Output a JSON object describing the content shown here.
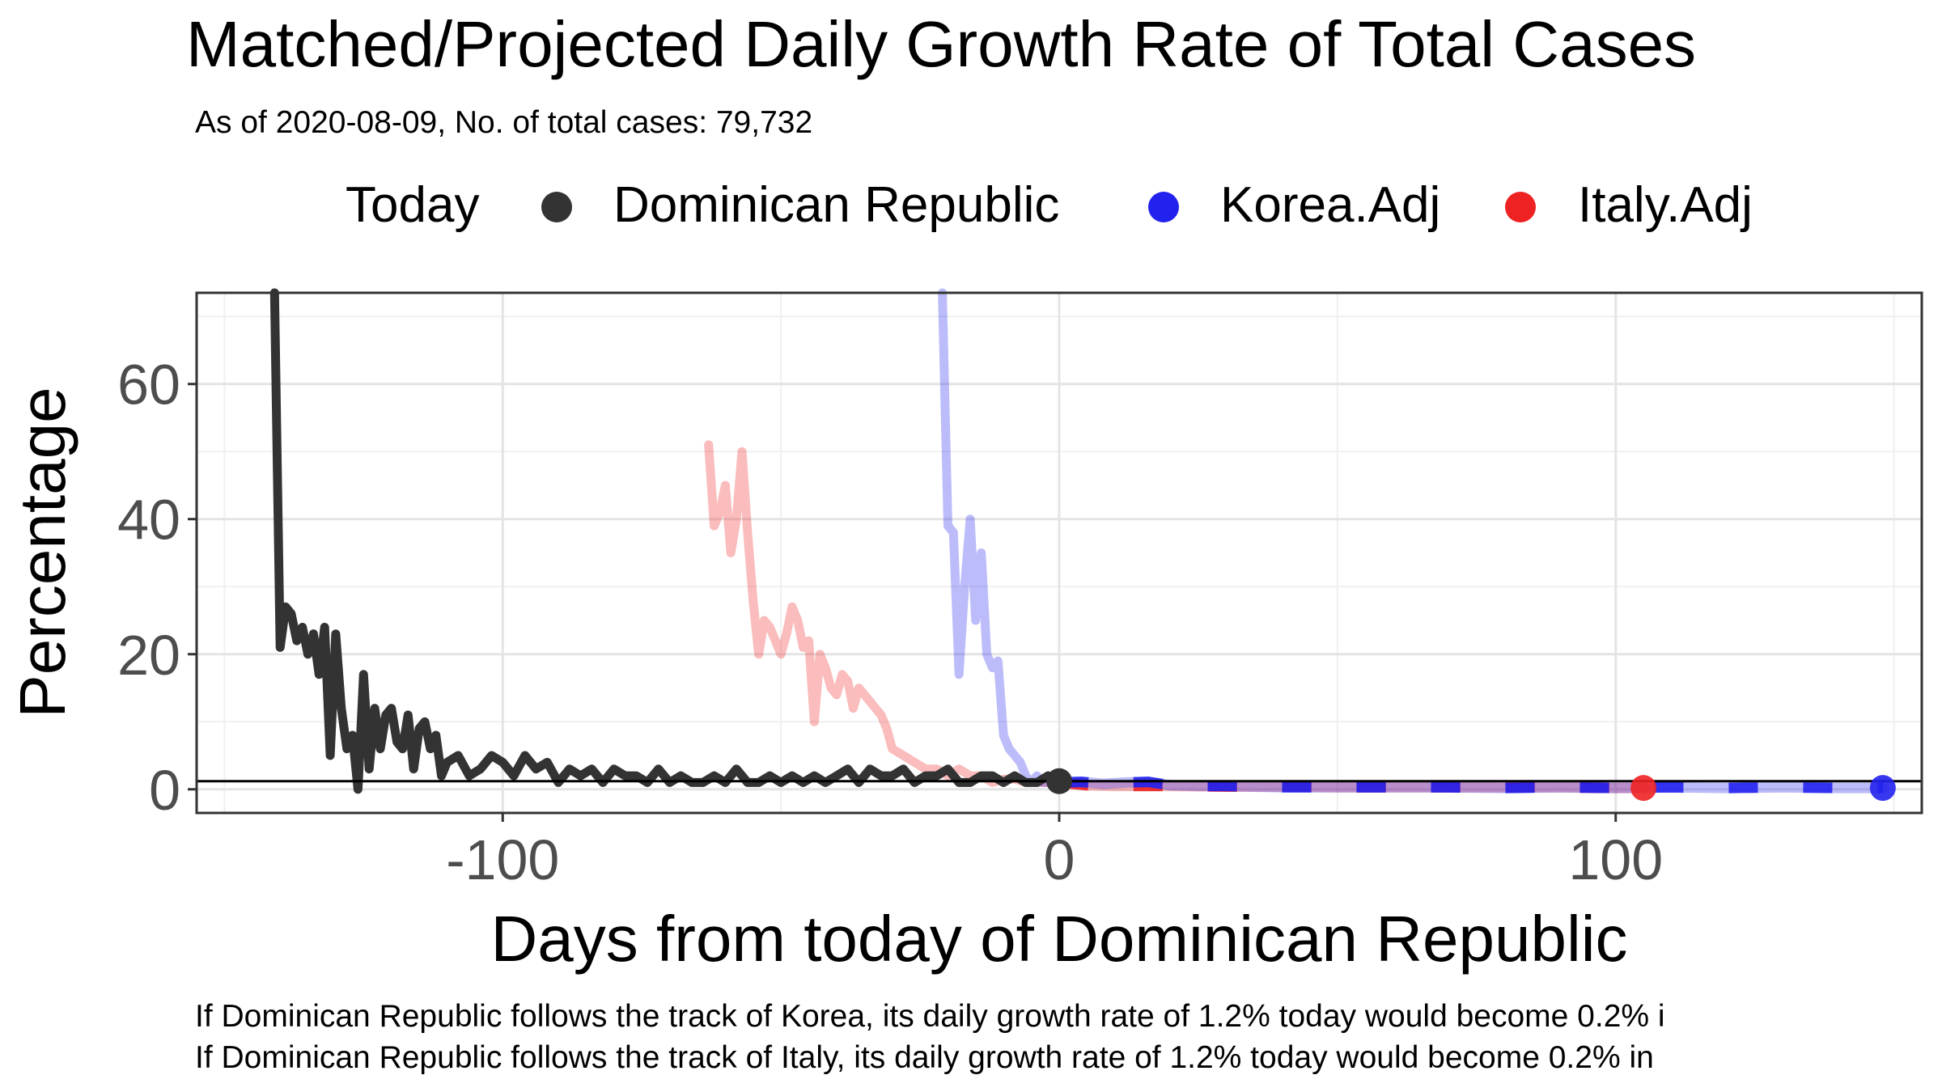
{
  "chart_data": {
    "type": "line",
    "title": "Matched/Projected Daily Growth Rate of Total Cases",
    "subtitle": "As of 2020-08-09, No. of total cases: 79,732",
    "xlabel": "Days from today of Dominican Republic",
    "ylabel": "Percentage",
    "xlim": [
      -155,
      155
    ],
    "ylim": [
      -3.5,
      73.5
    ],
    "x_ticks": [
      -100,
      0,
      100
    ],
    "x_tick_labels": [
      "-100",
      "0",
      "100"
    ],
    "y_ticks": [
      0,
      20,
      40,
      60
    ],
    "y_tick_labels": [
      "0",
      "20",
      "40",
      "60"
    ],
    "grid": true,
    "legend_position": "top",
    "legend": {
      "title": "Today",
      "entries": [
        {
          "label": "Dominican Republic",
          "color": "#333333"
        },
        {
          "label": "Korea.Adj",
          "color": "#2222ee"
        },
        {
          "label": "Italy.Adj",
          "color": "#ee2222"
        }
      ]
    },
    "hline": 1.2,
    "series": [
      {
        "name": "Dominican Republic",
        "color": "#333333",
        "x": [
          -141,
          -140,
          -139,
          -138,
          -137,
          -136,
          -135,
          -134,
          -133,
          -132,
          -131,
          -130,
          -129,
          -128,
          -127,
          -126,
          -125,
          -124,
          -123,
          -122,
          -121,
          -120,
          -119,
          -118,
          -117,
          -116,
          -115,
          -114,
          -113,
          -112,
          -111,
          -110,
          -108,
          -106,
          -104,
          -102,
          -100,
          -98,
          -96,
          -94,
          -92,
          -90,
          -88,
          -86,
          -84,
          -82,
          -80,
          -78,
          -76,
          -74,
          -72,
          -70,
          -68,
          -66,
          -64,
          -62,
          -60,
          -58,
          -56,
          -54,
          -52,
          -50,
          -48,
          -46,
          -44,
          -42,
          -40,
          -38,
          -36,
          -34,
          -32,
          -30,
          -28,
          -26,
          -24,
          -22,
          -20,
          -18,
          -16,
          -14,
          -12,
          -10,
          -8,
          -6,
          -4,
          -2,
          0
        ],
        "y": [
          75,
          21,
          27,
          26,
          22,
          24,
          20,
          23,
          17,
          24,
          5,
          23,
          12,
          6,
          8,
          0,
          17,
          3,
          12,
          6,
          11,
          12,
          7,
          6,
          11,
          3,
          9,
          10,
          6,
          8,
          2,
          4,
          5,
          2,
          3,
          5,
          4,
          2,
          5,
          3,
          4,
          1,
          3,
          2,
          3,
          1,
          3,
          2,
          2,
          1,
          3,
          1,
          2,
          1,
          1,
          2,
          1,
          3,
          1,
          1,
          2,
          1,
          2,
          1,
          2,
          1,
          2,
          3,
          1,
          3,
          2,
          2,
          3,
          1,
          2,
          2,
          3,
          1,
          1,
          2,
          2,
          1,
          2,
          1,
          1,
          2,
          1.2
        ]
      },
      {
        "name": "Korea.Adj",
        "color": "#2222ee",
        "x": [
          -21,
          -20,
          -19,
          -18,
          -17,
          -16,
          -15,
          -14,
          -13,
          -12,
          -11,
          -10,
          -9,
          -8,
          -7,
          -6,
          -5,
          -4,
          -3,
          -2,
          0,
          4,
          8,
          12,
          16,
          20,
          25,
          30,
          40,
          50,
          60,
          70,
          80,
          90,
          100,
          110,
          120,
          130,
          140,
          148
        ],
        "y": [
          74,
          39,
          38,
          17,
          30,
          40,
          25,
          35,
          20,
          18,
          19,
          8,
          6,
          5,
          4,
          2,
          1,
          2,
          1,
          1,
          1,
          1.1,
          0.8,
          1.0,
          1.1,
          0.6,
          0.5,
          0.5,
          0.3,
          0.3,
          0.3,
          0.3,
          0.2,
          0.3,
          0.2,
          0.3,
          0.2,
          0.3,
          0.2,
          0.2
        ]
      },
      {
        "name": "Italy.Adj",
        "color": "#ee2222",
        "x": [
          -63,
          -62,
          -61,
          -60,
          -59,
          -58,
          -57,
          -56,
          -55,
          -54,
          -53,
          -52,
          -51,
          -50,
          -49,
          -48,
          -47,
          -46,
          -45,
          -44,
          -43,
          -42,
          -41,
          -40,
          -39,
          -38,
          -37,
          -36,
          -35,
          -34,
          -33,
          -32,
          -31,
          -30,
          -28,
          -26,
          -24,
          -22,
          -20,
          -18,
          -16,
          -14,
          -12,
          -10,
          -8,
          -6,
          -4,
          -2,
          0,
          5,
          10,
          20,
          30,
          40,
          50,
          60,
          70,
          80,
          90,
          100,
          105
        ],
        "y": [
          51,
          39,
          41,
          45,
          35,
          40,
          50,
          38,
          28,
          20,
          25,
          24,
          22,
          20,
          23,
          27,
          25,
          21,
          22,
          10,
          20,
          18,
          15,
          14,
          17,
          16,
          12,
          15,
          14,
          13,
          12,
          11,
          9,
          6,
          5,
          4,
          3,
          3,
          2,
          3,
          2,
          2,
          1,
          1.5,
          1.5,
          1,
          1,
          1,
          1,
          0.6,
          0.5,
          0.5,
          0.4,
          0.4,
          0.3,
          0.3,
          0.3,
          0.3,
          0.3,
          0.2,
          0.2
        ]
      }
    ],
    "today_point": {
      "x": 0,
      "y": 1.2,
      "label": "Dominican Republic"
    },
    "endpoints": [
      {
        "name": "Korea.Adj",
        "x": 148,
        "y": 0.2
      },
      {
        "name": "Italy.Adj",
        "x": 105,
        "y": 0.2
      }
    ],
    "projection_start_x": 0,
    "annotations": [
      "If Dominican Republic follows the track of Korea, its daily growth rate of 1.2% today would become 0.2% i",
      "If Dominican Republic follows the track of Italy, its daily growth rate of 1.2% today would become 0.2% in"
    ]
  }
}
